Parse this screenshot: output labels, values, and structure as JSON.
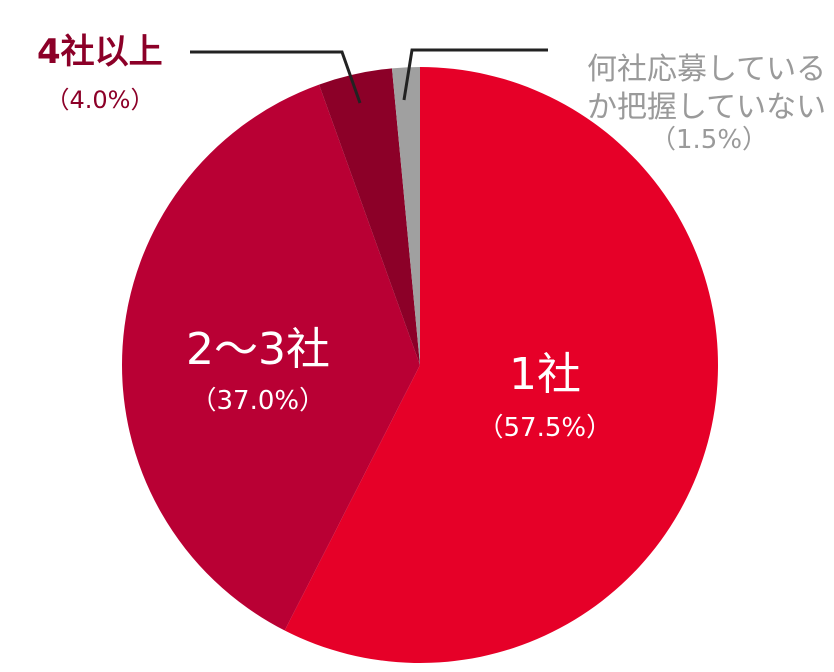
{
  "chart_data": {
    "type": "pie",
    "categories": [
      "1社",
      "2～3社",
      "4社以上",
      "何社応募しているか把握していない"
    ],
    "values": [
      57.5,
      37.0,
      4.0,
      1.5
    ],
    "value_labels": [
      "（57.5%）",
      "（37.0%）",
      "（4.0%）",
      "（1.5%）"
    ],
    "colors": [
      "#e60028",
      "#b90034",
      "#8c0028",
      "#a0a0a0"
    ]
  }
}
